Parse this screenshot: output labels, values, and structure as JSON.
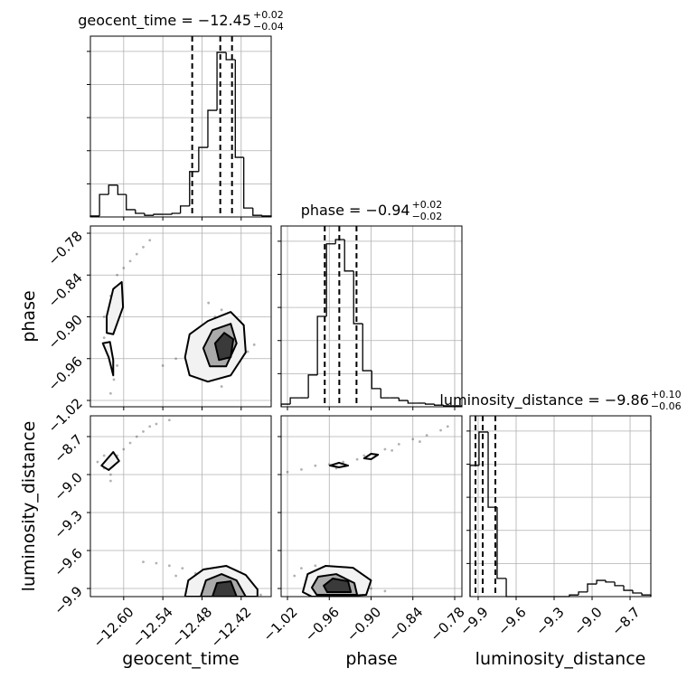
{
  "chart_data": {
    "type": "corner",
    "color": "#000000",
    "point_color": "#555555",
    "grid": true,
    "hist_ylim": [
      0,
      5.46
    ],
    "hist_yticks": [
      1,
      2,
      3,
      4,
      5
    ],
    "parameters": [
      {
        "name": "geocent_time",
        "title": "geocent_time = −12.45",
        "title_sup": "+0.02",
        "title_sub": "−0.04",
        "lim": [
          -12.651,
          -12.374
        ],
        "ticks": [
          {
            "value": -12.6,
            "label": "−12.60"
          },
          {
            "value": -12.54,
            "label": "−12.54"
          },
          {
            "value": -12.48,
            "label": "−12.48"
          },
          {
            "value": -12.42,
            "label": "−12.42"
          }
        ],
        "bins": [
          -12.651,
          -12.637,
          -12.623,
          -12.609,
          -12.596,
          -12.582,
          -12.568,
          -12.554,
          -12.54,
          -12.526,
          -12.513,
          -12.499,
          -12.485,
          -12.471,
          -12.457,
          -12.443,
          -12.429,
          -12.416,
          -12.402,
          -12.388,
          -12.374
        ],
        "counts": [
          0.03,
          0.68,
          0.96,
          0.68,
          0.22,
          0.11,
          0.05,
          0.08,
          0.08,
          0.11,
          0.33,
          1.37,
          2.1,
          3.22,
          4.97,
          4.75,
          1.8,
          0.27,
          0.05,
          0.03
        ],
        "quantiles": [
          -12.495,
          -12.452,
          -12.434
        ]
      },
      {
        "name": "phase",
        "title": "phase = −0.94",
        "title_sup": "+0.02",
        "title_sub": "−0.02",
        "lim": [
          -1.0291,
          -0.7696
        ],
        "ticks": [
          {
            "value": -1.02,
            "label": "−1.02"
          },
          {
            "value": -0.96,
            "label": "−0.96"
          },
          {
            "value": -0.9,
            "label": "−0.90"
          },
          {
            "value": -0.84,
            "label": "−0.84"
          },
          {
            "value": -0.78,
            "label": "−0.78"
          }
        ],
        "bins": [
          -1.029,
          -1.016,
          -1.003,
          -0.99,
          -0.977,
          -0.964,
          -0.951,
          -0.938,
          -0.925,
          -0.912,
          -0.899,
          -0.886,
          -0.873,
          -0.86,
          -0.847,
          -0.834,
          -0.822,
          -0.809,
          -0.796,
          -0.783,
          -0.77
        ],
        "counts": [
          0.08,
          0.27,
          0.27,
          0.96,
          2.73,
          4.92,
          5.05,
          4.1,
          2.51,
          1.09,
          0.55,
          0.27,
          0.27,
          0.19,
          0.11,
          0.11,
          0.08,
          0.05,
          0.03,
          0.03
        ],
        "quantiles": [
          -0.9665,
          -0.9456,
          -0.9209
        ]
      },
      {
        "name": "luminosity_distance",
        "title": "luminosity_distance = −9.86",
        "title_sup": "+0.10",
        "title_sub": "−0.06",
        "lim": [
          -9.964,
          -8.536
        ],
        "ticks": [
          {
            "value": -9.9,
            "label": "−9.9"
          },
          {
            "value": -9.6,
            "label": "−9.6"
          },
          {
            "value": -9.3,
            "label": "−9.3"
          },
          {
            "value": -9.0,
            "label": "−9.0"
          },
          {
            "value": -8.7,
            "label": "−8.7"
          }
        ],
        "bins": [
          -9.964,
          -9.893,
          -9.821,
          -9.75,
          -9.678,
          -9.607,
          -9.536,
          -9.464,
          -9.393,
          -9.321,
          -9.25,
          -9.179,
          -9.107,
          -9.036,
          -8.964,
          -8.893,
          -8.821,
          -8.75,
          -8.679,
          -8.607,
          -8.536
        ],
        "counts": [
          3.96,
          4.97,
          2.7,
          0.55,
          0,
          0,
          0,
          0,
          0,
          0,
          0,
          0.05,
          0.14,
          0.38,
          0.49,
          0.44,
          0.33,
          0.19,
          0.11,
          0.05
        ],
        "quantiles": [
          -9.921,
          -9.864,
          -9.764
        ]
      }
    ],
    "pairs": [
      {
        "points": {
          "x": [
            -12.63,
            -12.62,
            -12.61,
            -12.625,
            -12.615,
            -12.6,
            -12.59,
            -12.58,
            -12.57,
            -12.56,
            -12.62,
            -12.61,
            -12.63,
            -12.62,
            -12.52,
            -12.5,
            -12.49,
            -12.48,
            -12.47,
            -12.46,
            -12.45,
            -12.44,
            -12.43,
            -12.42,
            -12.41,
            -12.4,
            -12.47,
            -12.45,
            -12.43,
            -12.54
          ],
          "y": [
            -0.9,
            -0.87,
            -0.84,
            -0.95,
            -0.99,
            -0.83,
            -0.82,
            -0.81,
            -0.8,
            -0.79,
            -1.01,
            -0.97,
            -0.93,
            -0.88,
            -0.96,
            -0.95,
            -0.97,
            -0.92,
            -0.99,
            -0.9,
            -1.0,
            -0.91,
            -0.97,
            -0.93,
            -0.95,
            -0.94,
            -0.88,
            -0.89,
            -0.9,
            -0.97
          ]
        },
        "contours": [
          {
            "fill": "#f2f2f2",
            "x": [
              -12.506,
              -12.499,
              -12.471,
              -12.436,
              -12.416,
              -12.413,
              -12.436,
              -12.471,
              -12.499
            ],
            "y": [
              -0.958,
              -0.925,
              -0.906,
              -0.893,
              -0.912,
              -0.951,
              -0.984,
              -0.993,
              -0.984
            ]
          },
          {
            "fill": "#aaaaaa",
            "x": [
              -12.478,
              -12.464,
              -12.436,
              -12.427,
              -12.443,
              -12.468
            ],
            "y": [
              -0.945,
              -0.919,
              -0.91,
              -0.938,
              -0.971,
              -0.971
            ]
          },
          {
            "fill": "#3a3a3a",
            "x": [
              -12.46,
              -12.446,
              -12.432,
              -12.436,
              -12.454
            ],
            "y": [
              -0.938,
              -0.923,
              -0.932,
              -0.958,
              -0.962
            ]
          },
          {
            "fill": "#f2f2f2",
            "x": [
              -12.626,
              -12.616,
              -12.603,
              -12.601,
              -12.616,
              -12.626
            ],
            "y": [
              -0.899,
              -0.86,
              -0.85,
              -0.886,
              -0.925,
              -0.923
            ]
          },
          {
            "fill": "#f2f2f2",
            "x": [
              -12.632,
              -12.621,
              -12.616,
              -12.616,
              -12.623
            ],
            "y": [
              -0.938,
              -0.936,
              -0.962,
              -0.984,
              -0.958
            ]
          }
        ]
      },
      {
        "points": {
          "x": [
            -12.64,
            -12.63,
            -12.62,
            -12.61,
            -12.6,
            -12.59,
            -12.58,
            -12.57,
            -12.56,
            -12.55,
            -12.53,
            -12.62,
            -12.63,
            -12.55,
            -12.53,
            -12.51,
            -12.49,
            -12.47,
            -12.45,
            -12.43,
            -12.41,
            -12.4,
            -12.46,
            -12.5,
            -12.44,
            -12.42,
            -12.48,
            -12.52,
            -12.39,
            -12.57
          ],
          "y": [
            -8.9,
            -8.95,
            -9.0,
            -8.85,
            -8.8,
            -8.75,
            -8.7,
            -8.66,
            -8.62,
            -8.6,
            -8.57,
            -9.05,
            -8.85,
            -9.7,
            -9.72,
            -9.74,
            -9.78,
            -9.8,
            -9.85,
            -9.9,
            -9.88,
            -9.93,
            -9.93,
            -9.9,
            -9.76,
            -9.82,
            -9.86,
            -9.8,
            -9.95,
            -9.69
          ]
        },
        "contours": [
          {
            "fill": "#f2f2f2",
            "x": [
              -12.506,
              -12.501,
              -12.478,
              -12.443,
              -12.413,
              -12.395,
              -12.395
            ],
            "y": [
              -9.964,
              -9.836,
              -9.75,
              -9.721,
              -9.793,
              -9.907,
              -9.964
            ]
          },
          {
            "fill": "#aaaaaa",
            "x": [
              -12.482,
              -12.474,
              -12.45,
              -12.427,
              -12.413
            ],
            "y": [
              -9.964,
              -9.836,
              -9.786,
              -9.836,
              -9.964
            ]
          },
          {
            "fill": "#3a3a3a",
            "x": [
              -12.464,
              -12.457,
              -12.436,
              -12.427
            ],
            "y": [
              -9.964,
              -9.857,
              -9.843,
              -9.964
            ]
          },
          {
            "fill": "#f2f2f2",
            "x": [
              -12.634,
              -12.616,
              -12.607,
              -12.623
            ],
            "y": [
              -8.929,
              -8.822,
              -8.893,
              -8.964
            ]
          }
        ]
      },
      {
        "points": {
          "x": [
            -1.02,
            -1.0,
            -0.98,
            -0.96,
            -0.94,
            -0.92,
            -0.9,
            -0.88,
            -0.86,
            -0.84,
            -0.82,
            -0.8,
            -0.79,
            -0.95,
            -0.91,
            -0.87,
            -0.83,
            -1.0,
            -0.98,
            -0.96,
            -0.94,
            -0.92,
            -0.9,
            -0.99,
            -0.95,
            -0.91,
            -0.88,
            -0.97,
            -1.01
          ],
          "y": [
            -8.98,
            -8.96,
            -8.93,
            -8.92,
            -8.9,
            -8.88,
            -8.84,
            -8.8,
            -8.76,
            -8.72,
            -8.69,
            -8.65,
            -8.62,
            -8.95,
            -8.85,
            -8.81,
            -8.74,
            -9.74,
            -9.72,
            -9.76,
            -9.8,
            -9.84,
            -9.9,
            -9.93,
            -9.95,
            -9.94,
            -9.92,
            -9.85,
            -9.8
          ]
        },
        "contours": [
          {
            "fill": "#f2f2f2",
            "x": [
              -0.959,
              -0.946,
              -0.933,
              -0.946
            ],
            "y": [
              -8.929,
              -8.907,
              -8.929,
              -8.943
            ]
          },
          {
            "fill": "#f2f2f2",
            "x": [
              -0.91,
              -0.9,
              -0.89,
              -0.9
            ],
            "y": [
              -8.872,
              -8.836,
              -8.843,
              -8.879
            ]
          },
          {
            "fill": "#f2f2f2",
            "x": [
              -0.998,
              -0.991,
              -0.965,
              -0.926,
              -0.9,
              -0.907,
              -0.952,
              -0.985
            ],
            "y": [
              -9.928,
              -9.786,
              -9.721,
              -9.736,
              -9.836,
              -9.95,
              -9.964,
              -9.964
            ]
          },
          {
            "fill": "#aaaaaa",
            "x": [
              -0.985,
              -0.976,
              -0.95,
              -0.924,
              -0.92,
              -0.978
            ],
            "y": [
              -9.893,
              -9.807,
              -9.786,
              -9.857,
              -9.95,
              -9.95
            ]
          },
          {
            "fill": "#3a3a3a",
            "x": [
              -0.968,
              -0.955,
              -0.933,
              -0.929,
              -0.963
            ],
            "y": [
              -9.878,
              -9.821,
              -9.843,
              -9.928,
              -9.928
            ]
          }
        ]
      }
    ]
  }
}
